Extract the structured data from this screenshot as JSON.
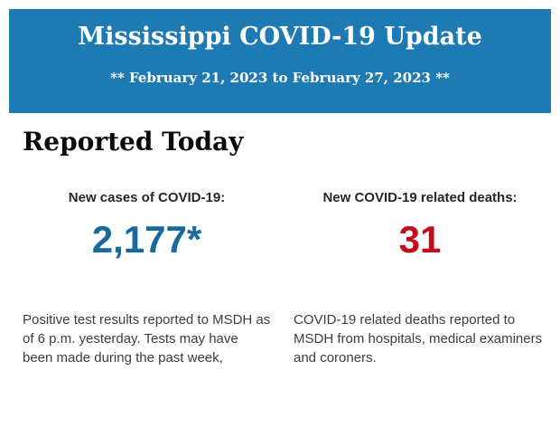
{
  "banner": {
    "title": "Mississippi COVID-19 Update",
    "subtitle": "** February 21, 2023 to February 27, 2023 **",
    "background_color": "#1E7AB3",
    "text_color": "#FFFFFF"
  },
  "reported_today": {
    "heading": "Reported Today",
    "cases": {
      "label": "New cases of COVID-19:",
      "value": "2,177*",
      "value_color": "#17699E",
      "description": "Positive test results reported to MSDH as of 6 p.m. yesterday. Tests may have been made during the past week,"
    },
    "deaths": {
      "label": "New COVID-19 related deaths:",
      "value": "31",
      "value_color": "#C10E1C",
      "description": "COVID-19 related deaths reported to MSDH from hospitals, medical examiners and coroners."
    }
  }
}
